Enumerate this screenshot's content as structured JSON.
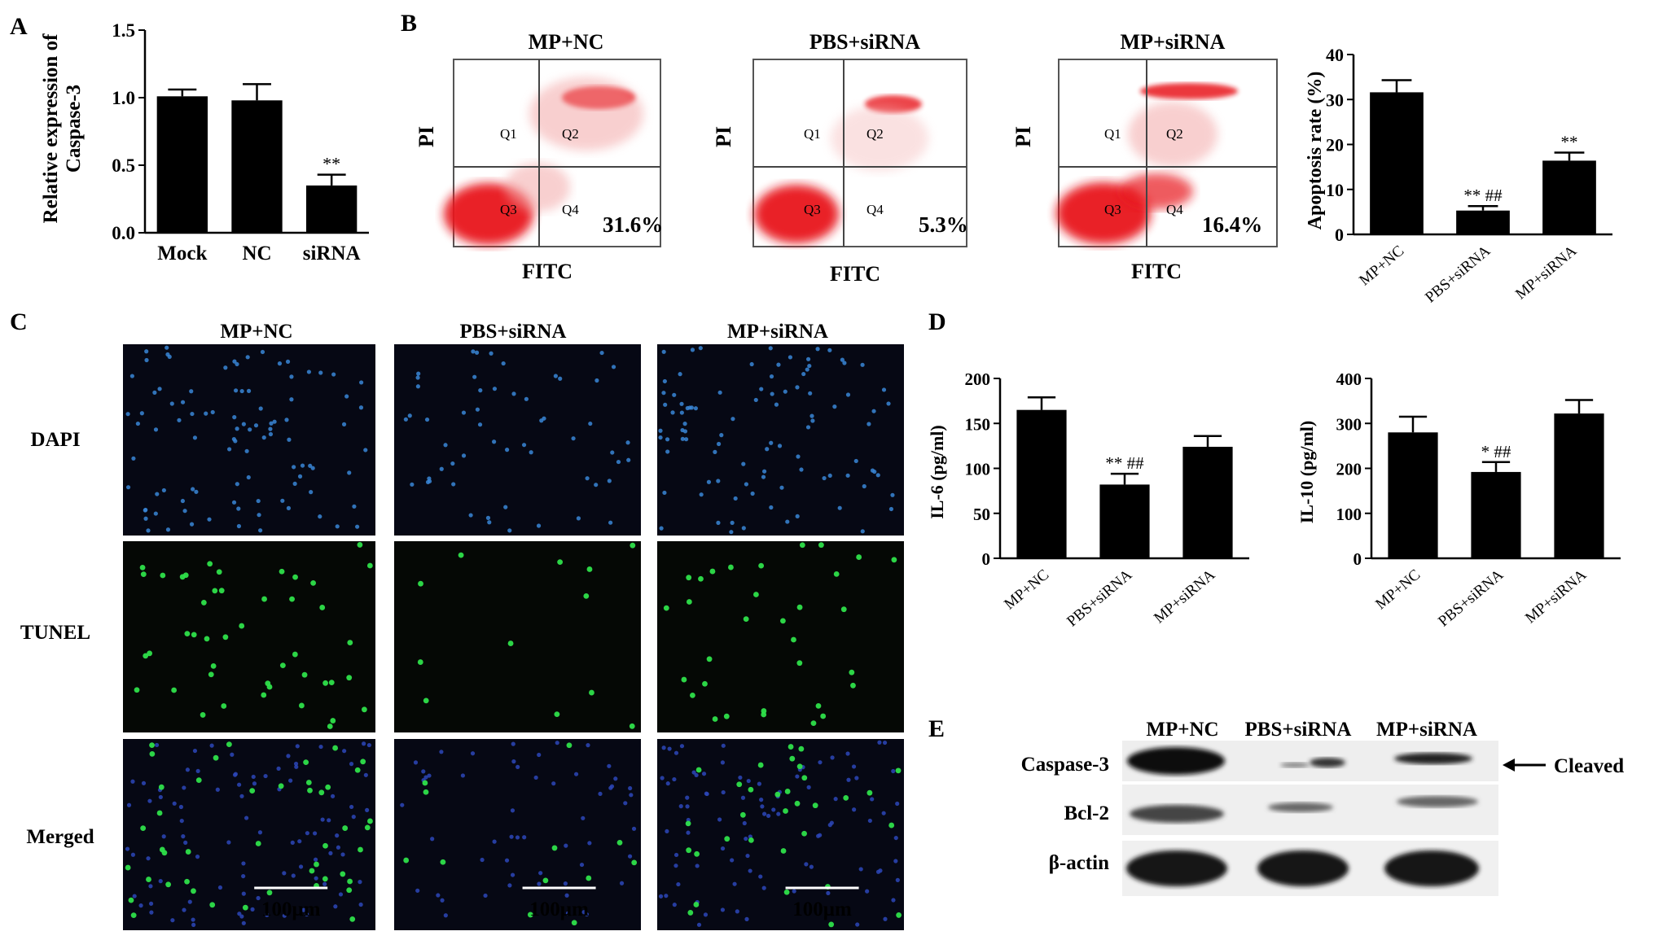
{
  "panels": {
    "A": {
      "letter": "A",
      "ylabel_line1": "Relative expression of",
      "ylabel_line2": "Caspase-3",
      "yticks": [
        "0.0",
        "0.5",
        "1.0",
        "1.5"
      ],
      "categories": [
        "Mock",
        "NC",
        "siRNA"
      ],
      "sig": [
        "",
        "",
        "**"
      ]
    },
    "B": {
      "letter": "B",
      "plots": [
        {
          "title": "MP+NC",
          "percent": "31.6%"
        },
        {
          "title": "PBS+siRNA",
          "percent": "5.3%"
        },
        {
          "title": "MP+siRNA",
          "percent": "16.4%"
        }
      ],
      "x_axis": "FITC",
      "y_axis": "PI",
      "quadrants": [
        "Q1",
        "Q2",
        "Q3",
        "Q4"
      ],
      "bar": {
        "ylabel": "Apoptosis rate (%)",
        "yticks": [
          "0",
          "10",
          "20",
          "30",
          "40"
        ],
        "categories": [
          "MP+NC",
          "PBS+siRNA",
          "MP+siRNA"
        ],
        "sig": [
          "",
          "** ##",
          "**"
        ]
      }
    },
    "C": {
      "letter": "C",
      "columns": [
        "MP+NC",
        "PBS+siRNA",
        "MP+siRNA"
      ],
      "rows": [
        "DAPI",
        "TUNEL",
        "Merged"
      ],
      "scale": "100μm"
    },
    "D": {
      "letter": "D",
      "left": {
        "ylabel": "IL-6 (pg/ml)",
        "yticks": [
          "0",
          "50",
          "100",
          "150",
          "200"
        ],
        "categories": [
          "MP+NC",
          "PBS+siRNA",
          "MP+siRNA"
        ],
        "sig": [
          "",
          "** ##",
          ""
        ]
      },
      "right": {
        "ylabel": "IL-10 (pg/ml)",
        "yticks": [
          "0",
          "100",
          "200",
          "300",
          "400"
        ],
        "categories": [
          "MP+NC",
          "PBS+siRNA",
          "MP+siRNA"
        ],
        "sig": [
          "",
          "* ##",
          ""
        ]
      }
    },
    "E": {
      "letter": "E",
      "columns": [
        "MP+NC",
        "PBS+siRNA",
        "MP+siRNA"
      ],
      "rows": [
        "Caspase-3",
        "Bcl-2",
        "β-actin"
      ],
      "arrow_label": "Cleaved"
    }
  },
  "chart_data": [
    {
      "type": "bar",
      "categories": [
        "Mock",
        "NC",
        "siRNA"
      ],
      "values": [
        1.01,
        0.98,
        0.35
      ],
      "errors": [
        0.05,
        0.12,
        0.08
      ],
      "ylabel": "Relative expression of Caspase-3",
      "ylim": [
        0,
        1.5
      ],
      "color": "#000000"
    },
    {
      "type": "bar",
      "categories": [
        "MP+NC",
        "PBS+siRNA",
        "MP+siRNA"
      ],
      "values": [
        31.6,
        5.3,
        16.4
      ],
      "errors": [
        2.7,
        1.0,
        1.8
      ],
      "ylabel": "Apoptosis rate (%)",
      "ylim": [
        0,
        40
      ],
      "color": "#000000"
    },
    {
      "type": "bar",
      "categories": [
        "MP+NC",
        "PBS+siRNA",
        "MP+siRNA"
      ],
      "values": [
        165,
        82,
        124
      ],
      "errors": [
        14,
        12,
        12
      ],
      "ylabel": "IL-6 (pg/ml)",
      "ylim": [
        0,
        200
      ],
      "color": "#000000"
    },
    {
      "type": "bar",
      "categories": [
        "MP+NC",
        "PBS+siRNA",
        "MP+siRNA"
      ],
      "values": [
        280,
        192,
        322
      ],
      "errors": [
        35,
        22,
        30
      ],
      "ylabel": "IL-10 (pg/ml)",
      "ylim": [
        0,
        400
      ],
      "color": "#000000"
    }
  ]
}
